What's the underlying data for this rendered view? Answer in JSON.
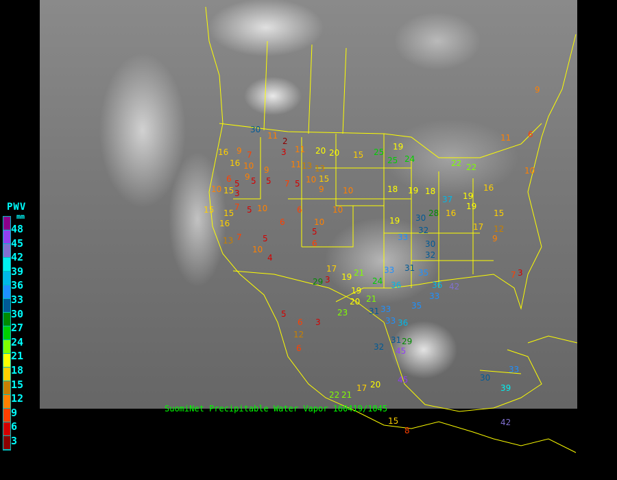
{
  "legend": {
    "title": "PWV",
    "unit": "mm",
    "labels": [
      "48",
      "45",
      "42",
      "39",
      "36",
      "33",
      "30",
      "27",
      "24",
      "21",
      "18",
      "15",
      "12",
      "9",
      "6",
      "3"
    ],
    "colors_top_to_bottom": [
      "#8b008b",
      "#9040f0",
      "#8070d0",
      "#00f0f0",
      "#00b8e8",
      "#1e90ff",
      "#005a96",
      "#008a00",
      "#00d000",
      "#80ff00",
      "#ffff00",
      "#ffd000",
      "#c88000",
      "#ff8000",
      "#ff4000",
      "#d40000",
      "#8b0000"
    ]
  },
  "caption": "SuomiNet Precipitable Water Vapor 160419/1045",
  "border_color": "#ffff00",
  "stations": [
    "30",
    "11",
    "2",
    "3",
    "11",
    "20",
    "20",
    "15",
    "25",
    "25",
    "24",
    "19",
    "16",
    "9",
    "7",
    "16",
    "10",
    "9",
    "5",
    "9",
    "13",
    "13",
    "15",
    "11",
    "10",
    "9",
    "22",
    "22",
    "6",
    "10",
    "5",
    "15",
    "15",
    "5",
    "3",
    "7",
    "5",
    "5",
    "7",
    "10",
    "10",
    "6",
    "15",
    "16",
    "13",
    "10",
    "6",
    "10",
    "7",
    "5",
    "5",
    "6",
    "4",
    "3",
    "19",
    "19",
    "21",
    "28",
    "30",
    "32",
    "33",
    "31",
    "30",
    "32",
    "33",
    "36",
    "36",
    "35",
    "24",
    "21",
    "20",
    "19",
    "17",
    "31",
    "33",
    "36",
    "35",
    "33",
    "31",
    "29",
    "32",
    "23",
    "5",
    "6",
    "3",
    "12",
    "6",
    "17",
    "20",
    "22",
    "21",
    "15",
    "8",
    "30",
    "33",
    "39",
    "33",
    "42",
    "37",
    "16",
    "19",
    "17",
    "15",
    "16",
    "19",
    "18",
    "19",
    "18",
    "10",
    "9",
    "6",
    "11",
    "10",
    "12",
    "9",
    "7",
    "3",
    "29",
    "45",
    "45",
    "42"
  ]
}
